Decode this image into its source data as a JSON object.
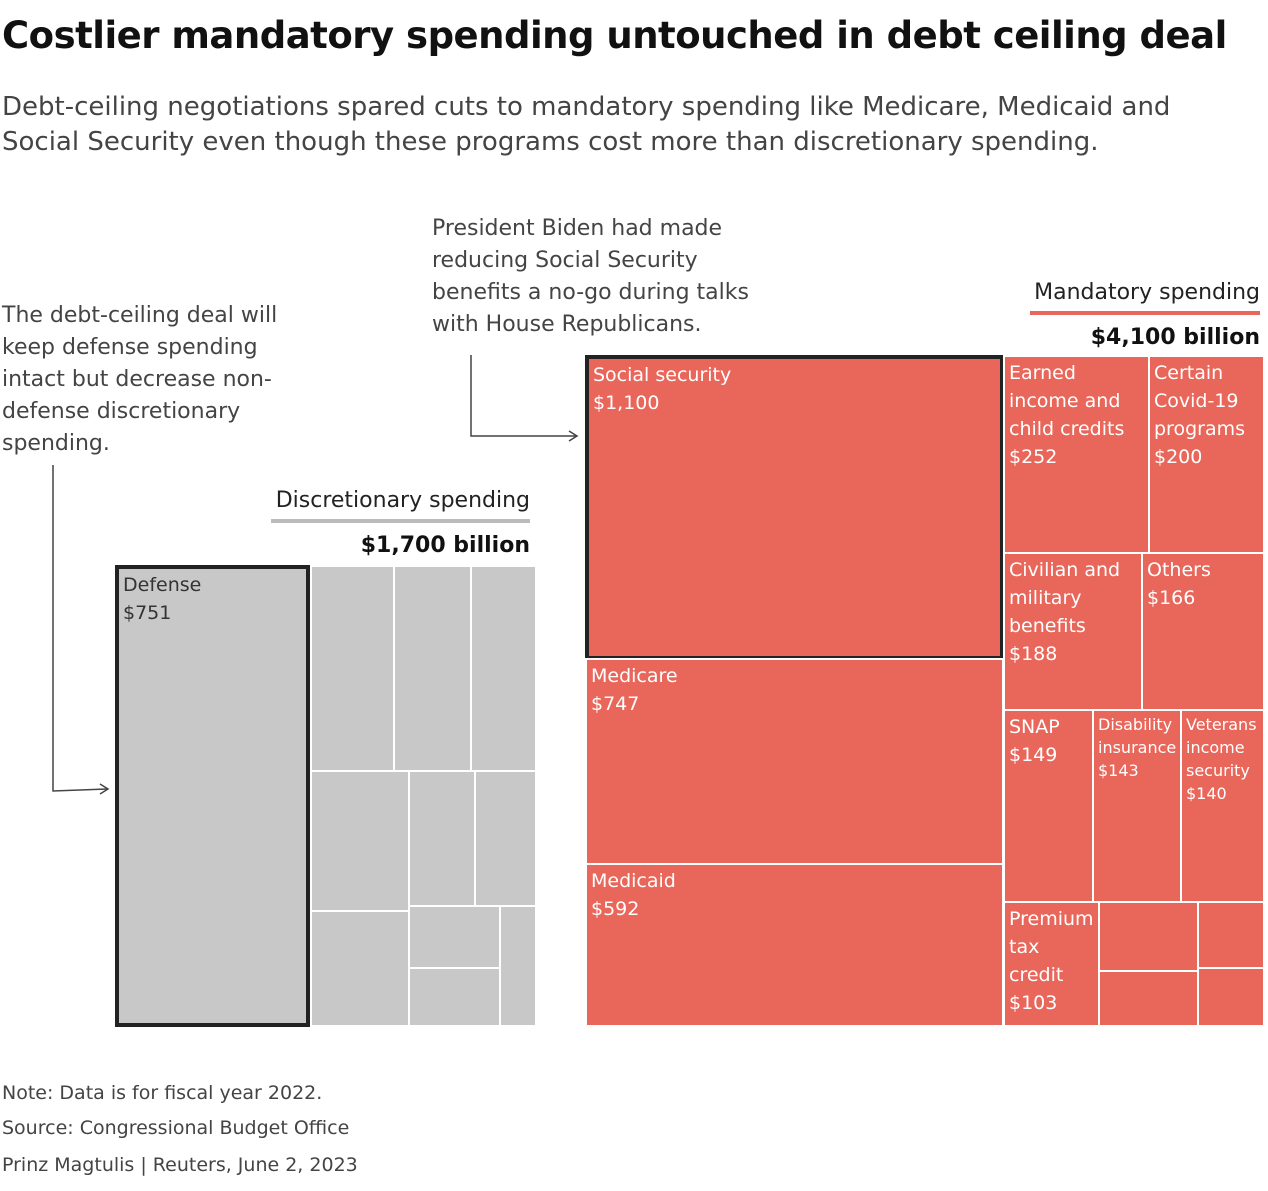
{
  "chart_data": {
    "type": "treemap",
    "title": "Costlier mandatory spending untouched in debt ceiling deal",
    "subtitle": "Debt-ceiling negotiations spared cuts to mandatory spending like Medicare, Medicaid and Social Security even though these programs cost more than discretionary spending.",
    "annotations": [
      "The debt-ceiling deal will keep defense spending intact but decrease non-defense discretionary spending.",
      "President Biden had made reducing Social Security benefits a no-go during talks with House Republicans."
    ],
    "groups": [
      {
        "name": "Discretionary spending",
        "total": 1700,
        "total_label": "$1,700 billion",
        "color": "#c8c8c8",
        "items": [
          {
            "name": "Defense",
            "value": 751,
            "value_label": "$751"
          },
          {
            "name": null,
            "value": 145
          },
          {
            "name": null,
            "value": 134
          },
          {
            "name": null,
            "value": 116
          },
          {
            "name": null,
            "value": 116
          },
          {
            "name": null,
            "value": 74
          },
          {
            "name": null,
            "value": 71
          },
          {
            "name": null,
            "value": 96
          },
          {
            "name": null,
            "value": 47
          },
          {
            "name": null,
            "value": 45
          },
          {
            "name": null,
            "value": 38
          }
        ]
      },
      {
        "name": "Mandatory spending",
        "total": 4100,
        "total_label": "$4,100 billion",
        "color": "#e8665a",
        "items": [
          {
            "name": "Social security",
            "value": 1100,
            "value_label": "$1,100"
          },
          {
            "name": "Medicare",
            "value": 747,
            "value_label": "$747"
          },
          {
            "name": "Medicaid",
            "value": 592,
            "value_label": "$592"
          },
          {
            "name": "Earned income and child credits",
            "value": 252,
            "value_label": "$252"
          },
          {
            "name": "Certain Covid-19 programs",
            "value": 200,
            "value_label": "$200"
          },
          {
            "name": "Civilian and military benefits",
            "value": 188,
            "value_label": "$188"
          },
          {
            "name": "Others",
            "value": 166,
            "value_label": "$166"
          },
          {
            "name": "SNAP",
            "value": 149,
            "value_label": "$149"
          },
          {
            "name": "Disability insurance",
            "value": 143,
            "value_label": "$143"
          },
          {
            "name": "Veterans income security",
            "value": 140,
            "value_label": "$140"
          },
          {
            "name": "Premium tax credit",
            "value": 103,
            "value_label": "$103"
          },
          {
            "name": null,
            "value": 58
          },
          {
            "name": null,
            "value": 48
          },
          {
            "name": null,
            "value": 38
          },
          {
            "name": null,
            "value": 34
          }
        ]
      }
    ],
    "notes": [
      "Note: Data is for fiscal year 2022.",
      "Source: Congressional Budget Office"
    ],
    "credit": "Prinz Magtulis | Reuters, June 2, 2023"
  }
}
